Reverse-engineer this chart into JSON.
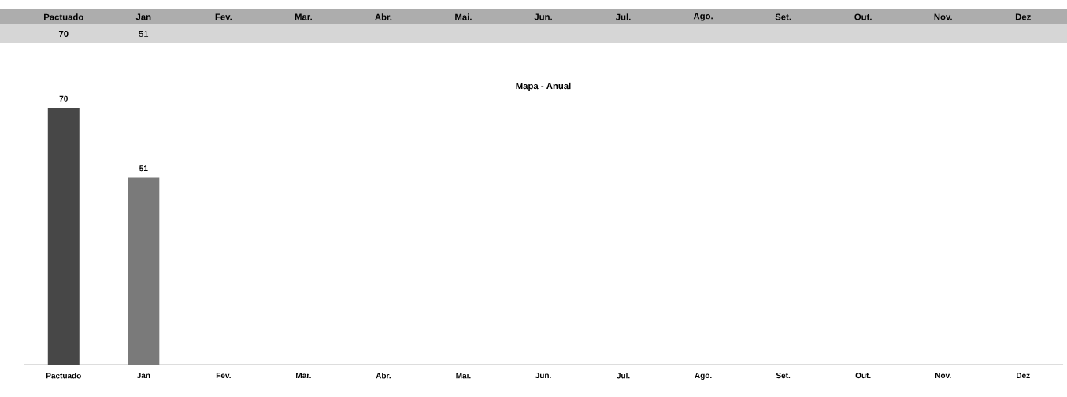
{
  "chart_data": {
    "type": "bar",
    "title": "Mapa - Anual",
    "categories": [
      "Pactuado",
      "Jan",
      "Fev.",
      "Mar.",
      "Abr.",
      "Mai.",
      "Jun.",
      "Jul.",
      "Ago.",
      "Set.",
      "Out.",
      "Nov.",
      "Dez"
    ],
    "values": [
      70,
      51,
      null,
      null,
      null,
      null,
      null,
      null,
      null,
      null,
      null,
      null,
      null
    ],
    "colors": [
      "#474747",
      "#7a7a7a",
      "#7a7a7a",
      "#7a7a7a",
      "#7a7a7a",
      "#7a7a7a",
      "#7a7a7a",
      "#7a7a7a",
      "#7a7a7a",
      "#7a7a7a",
      "#7a7a7a",
      "#7a7a7a",
      "#7a7a7a"
    ],
    "value_labels": [
      "70",
      "51",
      null,
      null,
      null,
      null,
      null,
      null,
      null,
      null,
      null,
      null,
      null
    ],
    "data_labels": true
  }
}
